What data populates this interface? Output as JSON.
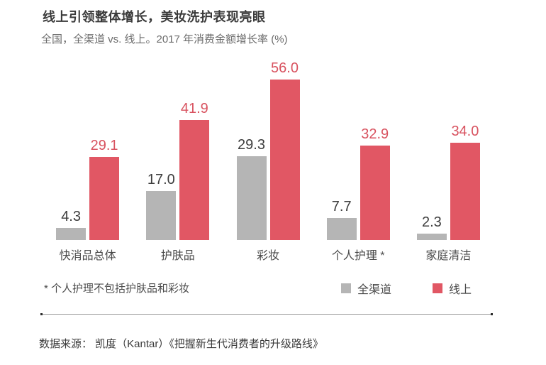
{
  "header": {
    "title": "线上引领整体增长，美妆洗护表现亮眼",
    "subtitle": "全国，全渠道 vs. 线上。2017 年消费金额增长率 (%)"
  },
  "chart_data": {
    "type": "bar",
    "title": "线上引领整体增长，美妆洗护表现亮眼",
    "subtitle": "全国，全渠道 vs. 线上。2017 年消费金额增长率 (%)",
    "categories": [
      "快消品总体",
      "护肤品",
      "彩妆",
      "个人护理 *",
      "家庭清洁"
    ],
    "series": [
      {
        "name": "全渠道",
        "color": "#b5b5b5",
        "label_color": "#3d3d3d",
        "values": [
          4.3,
          17.0,
          29.3,
          7.7,
          2.3
        ]
      },
      {
        "name": "线上",
        "color": "#e15764",
        "label_color": "#d8525f",
        "values": [
          29.1,
          41.9,
          56.0,
          32.9,
          34.0
        ]
      }
    ],
    "ylim": [
      0,
      60
    ],
    "value_labels": true,
    "grid": false,
    "legend_position": "bottom-right",
    "unit": "%"
  },
  "footnote": "* 个人护理不包括护肤品和彩妆",
  "source": "数据来源： 凯度（Kantar）《把握新生代消费者的升级路线》",
  "colors": {
    "all_channel_bar": "#b5b5b5",
    "online_bar": "#e15764",
    "online_value_text": "#d8525f",
    "all_channel_value_text": "#3d3d3d"
  }
}
